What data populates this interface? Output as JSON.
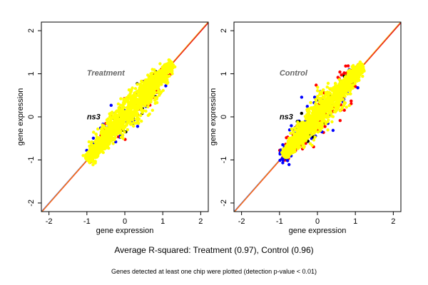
{
  "chart_data": [
    {
      "type": "scatter",
      "title": "Treatment",
      "xlabel": "gene expression",
      "ylabel": "gene expression",
      "xlim": [
        -2.2,
        2.2
      ],
      "ylim": [
        -2.2,
        2.2
      ],
      "xticks": [
        "-2",
        "-1",
        "0",
        "1",
        "2"
      ],
      "yticks": [
        "-2",
        "-1",
        "0",
        "1",
        "2"
      ],
      "annotation": "ns3",
      "grid": false,
      "reference_lines": [
        {
          "color": "#0000ff",
          "from": [
            -2.2,
            -2.2
          ],
          "to": [
            2.2,
            2.2
          ]
        },
        {
          "color": "#ff0000",
          "from": [
            -2.2,
            -2.22
          ],
          "to": [
            2.2,
            2.18
          ]
        },
        {
          "color": "#ffa500",
          "from": [
            -2.2,
            -2.21
          ],
          "to": [
            2.2,
            2.21
          ]
        }
      ],
      "point_clouds": [
        {
          "color": "#ff0000",
          "x_range": [
            -1.0,
            1.15
          ],
          "spread": 0.34,
          "count": 80
        },
        {
          "color": "#0000ff",
          "x_range": [
            -0.9,
            1.1
          ],
          "spread": 0.42,
          "count": 70
        },
        {
          "color": "#000000",
          "x_range": [
            -0.9,
            1.05
          ],
          "spread": 0.36,
          "count": 40
        },
        {
          "color": "#ffff00",
          "x_range": [
            -1.0,
            1.25
          ],
          "spread": 0.3,
          "count": 1400
        }
      ]
    },
    {
      "type": "scatter",
      "title": "Control",
      "xlabel": "gene expression",
      "ylabel": "gene expression",
      "xlim": [
        -2.2,
        2.2
      ],
      "ylim": [
        -2.2,
        2.2
      ],
      "xticks": [
        "-2",
        "-1",
        "0",
        "1",
        "2"
      ],
      "yticks": [
        "-2",
        "-1",
        "0",
        "1",
        "2"
      ],
      "annotation": "ns3",
      "grid": false,
      "reference_lines": [
        {
          "color": "#0000ff",
          "from": [
            -2.2,
            -2.2
          ],
          "to": [
            2.2,
            2.2
          ]
        },
        {
          "color": "#ff0000",
          "from": [
            -2.2,
            -2.22
          ],
          "to": [
            2.2,
            2.18
          ]
        },
        {
          "color": "#ffa500",
          "from": [
            -2.2,
            -2.21
          ],
          "to": [
            2.2,
            2.21
          ]
        }
      ],
      "point_clouds": [
        {
          "color": "#ff0000",
          "x_range": [
            -0.95,
            1.2
          ],
          "spread": 0.42,
          "count": 160
        },
        {
          "color": "#0000ff",
          "x_range": [
            -1.0,
            1.0
          ],
          "spread": 0.5,
          "count": 110
        },
        {
          "color": "#000000",
          "x_range": [
            -0.9,
            1.0
          ],
          "spread": 0.38,
          "count": 40
        },
        {
          "color": "#ffff00",
          "x_range": [
            -0.9,
            1.2
          ],
          "spread": 0.28,
          "count": 1300
        }
      ]
    }
  ],
  "caption_main": "Average R-squared: Treatment (0.97), Control (0.96)",
  "caption_note": "Genes detected at least one chip were plotted (detection p-value < 0.01)"
}
